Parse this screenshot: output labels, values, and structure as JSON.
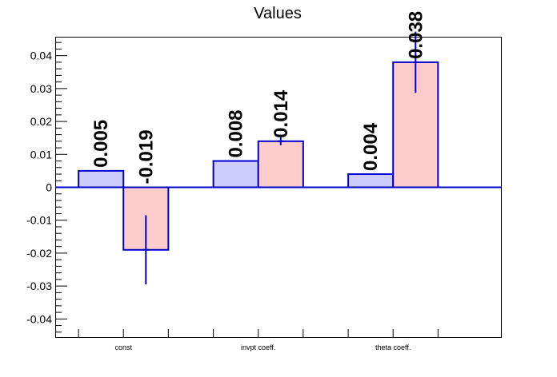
{
  "chart_data": {
    "type": "bar",
    "title": "Values",
    "xlabel": "",
    "ylabel": "",
    "categories": [
      "const",
      "invpt coeff.",
      "theta coeff."
    ],
    "series": [
      {
        "color": "#ccccff",
        "values": [
          0.005,
          0.008,
          0.004
        ],
        "labels": [
          "0.005",
          "0.008",
          "0.004"
        ],
        "errors": [
          0,
          0,
          0
        ]
      },
      {
        "color": "#ffcccc",
        "values": [
          -0.019,
          0.014,
          0.038
        ],
        "labels": [
          "-0.019",
          "0.014",
          "0.038"
        ],
        "errors": [
          0.0105,
          0.0012,
          0.0093
        ]
      }
    ],
    "yticks": [
      "-0.04",
      "-0.03",
      "-0.02",
      "-0.01",
      "0",
      "0.01",
      "0.02",
      "0.03",
      "0.04"
    ],
    "ylim": [
      -0.0455,
      0.0455
    ],
    "outline_color": "#0000cc",
    "grid": false,
    "legend": "none"
  }
}
